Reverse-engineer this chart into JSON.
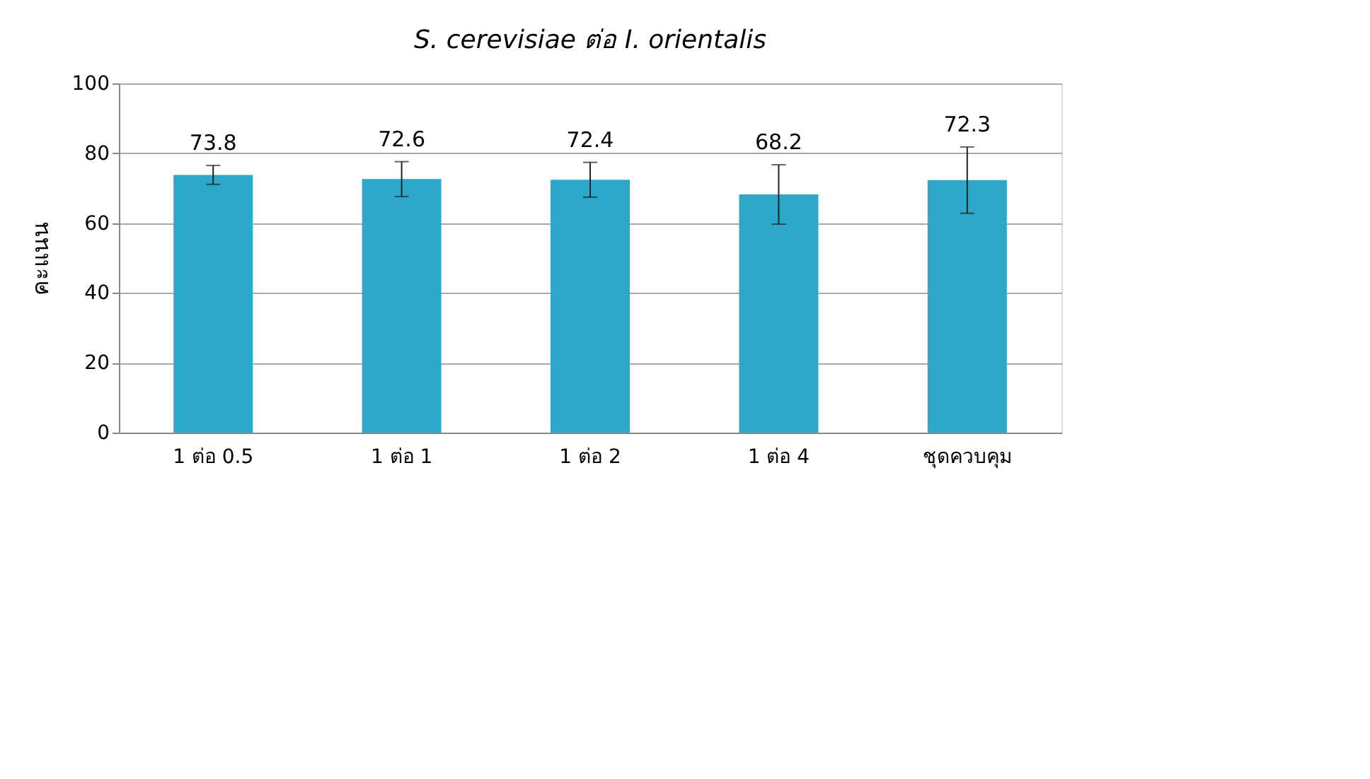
{
  "chart_data": {
    "type": "bar",
    "title": "S. cerevisiae ต่อ I. orientalis",
    "ylabel": "คะแนน",
    "categories": [
      "1 ต่อ 0.5",
      "1 ต่อ 1",
      "1 ต่อ 2",
      "1 ต่อ 4",
      "ชุดควบคุม"
    ],
    "values": [
      73.8,
      72.6,
      72.4,
      68.2,
      72.3
    ],
    "errors": [
      2.7,
      5,
      5,
      8.5,
      9.5
    ],
    "color": "#2ea8c8",
    "ylim": [
      0,
      100
    ],
    "yticks": [
      0,
      20,
      40,
      60,
      80,
      100
    ],
    "grid": "y",
    "data_labels": true
  }
}
